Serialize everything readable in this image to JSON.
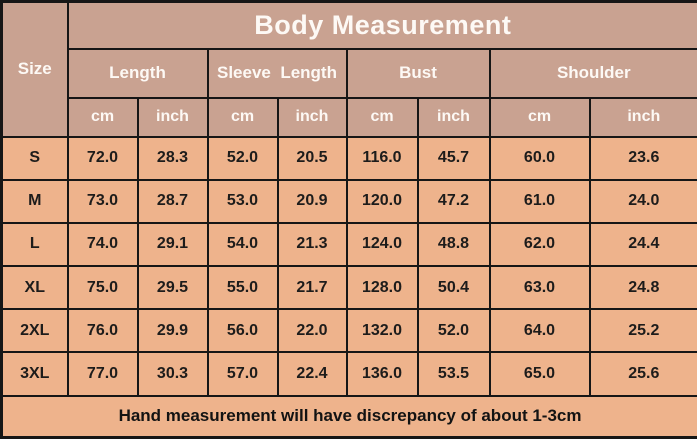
{
  "chart_data": {
    "type": "table",
    "title": "Body Measurement",
    "size_header": "Size",
    "groups": [
      {
        "label": "Length"
      },
      {
        "label": "Sleeve  Length"
      },
      {
        "label": "Bust"
      },
      {
        "label": "Shoulder"
      }
    ],
    "unit_headers": [
      "cm",
      "inch",
      "cm",
      "inch",
      "cm",
      "inch",
      "cm",
      "inch"
    ],
    "rows": [
      {
        "size": "S",
        "values": [
          "72.0",
          "28.3",
          "52.0",
          "20.5",
          "116.0",
          "45.7",
          "60.0",
          "23.6"
        ]
      },
      {
        "size": "M",
        "values": [
          "73.0",
          "28.7",
          "53.0",
          "20.9",
          "120.0",
          "47.2",
          "61.0",
          "24.0"
        ]
      },
      {
        "size": "L",
        "values": [
          "74.0",
          "29.1",
          "54.0",
          "21.3",
          "124.0",
          "48.8",
          "62.0",
          "24.4"
        ]
      },
      {
        "size": "XL",
        "values": [
          "75.0",
          "29.5",
          "55.0",
          "21.7",
          "128.0",
          "50.4",
          "63.0",
          "24.8"
        ]
      },
      {
        "size": "2XL",
        "values": [
          "76.0",
          "29.9",
          "56.0",
          "22.0",
          "132.0",
          "52.0",
          "64.0",
          "25.2"
        ]
      },
      {
        "size": "3XL",
        "values": [
          "77.0",
          "30.3",
          "57.0",
          "22.4",
          "136.0",
          "53.5",
          "65.0",
          "25.6"
        ]
      }
    ],
    "footer": "Hand measurement will have discrepancy of about 1-3cm"
  },
  "colors": {
    "header_bg": "#c9a291",
    "body_bg": "#eeb38c",
    "border": "#161616",
    "header_text": "#fdf9f5",
    "body_text": "#1d1c1b"
  }
}
